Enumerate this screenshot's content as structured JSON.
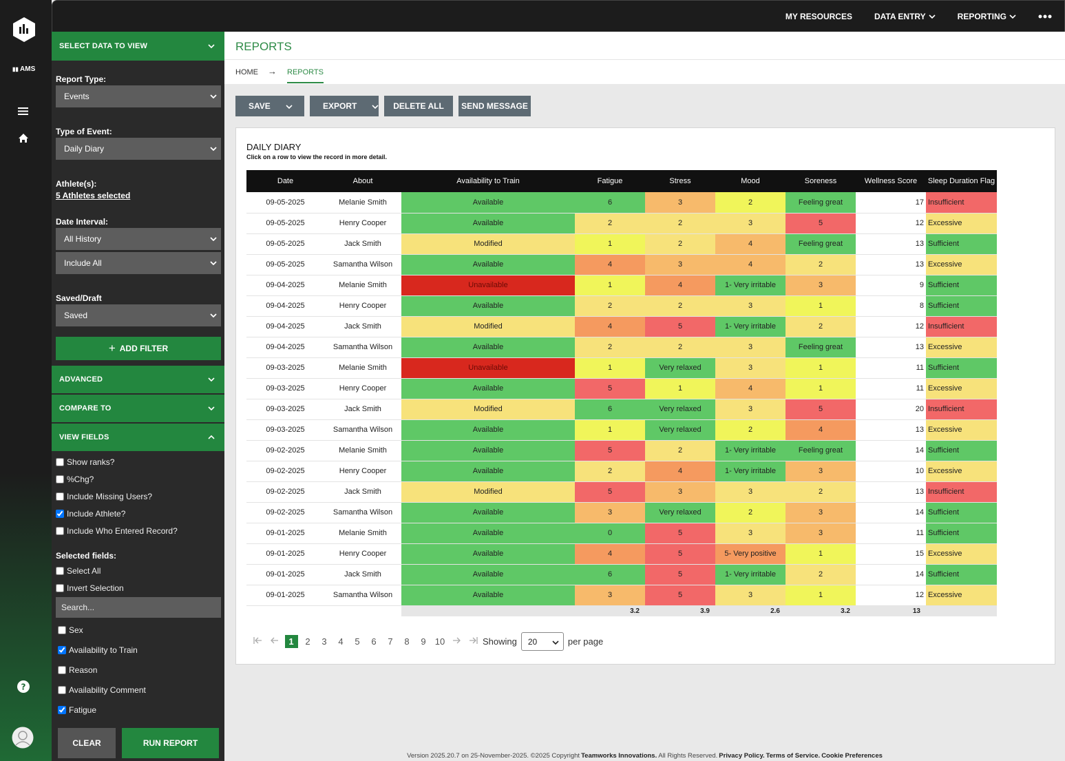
{
  "nav": {
    "brand": "AMS",
    "links": [
      {
        "text": "MY RESOURCES",
        "menu": false
      },
      {
        "text": "DATA ENTRY",
        "menu": true
      },
      {
        "text": "REPORTING",
        "menu": true
      }
    ]
  },
  "sidebar": {
    "header": "SELECT DATA TO VIEW",
    "report_type": {
      "label": "Report Type:",
      "value": "Events"
    },
    "event_type": {
      "label": "Type of Event:",
      "value": "Daily Diary"
    },
    "athletes": {
      "label": "Athlete(s):",
      "value": "5 Athletes selected"
    },
    "date_interval": {
      "label": "Date Interval:",
      "values": [
        "All History",
        "Include All"
      ]
    },
    "saved_draft": {
      "label": "Saved/Draft",
      "value": "Saved"
    },
    "add_filter": "ADD FILTER",
    "sections": [
      {
        "text": "ADVANCED",
        "open": false
      },
      {
        "text": "COMPARE TO",
        "open": false
      },
      {
        "text": "VIEW FIELDS",
        "open": true
      }
    ],
    "options": [
      {
        "label": "Show ranks?",
        "checked": false
      },
      {
        "label": "%Chg?",
        "checked": false
      },
      {
        "label": "Include Missing Users?",
        "checked": false
      },
      {
        "label": "Include Athlete?",
        "checked": true
      },
      {
        "label": "Include Who Entered Record?",
        "checked": false
      }
    ],
    "selected_fields": {
      "label": "Selected fields:",
      "options": [
        {
          "label": "Select All",
          "checked": false
        },
        {
          "label": "Invert Selection",
          "checked": false
        }
      ],
      "search": "Search...",
      "fields": [
        {
          "label": "Sex",
          "checked": false
        },
        {
          "label": "Availability to Train",
          "checked": true
        },
        {
          "label": "Reason",
          "checked": false
        },
        {
          "label": "Availability Comment",
          "checked": false
        },
        {
          "label": "Fatigue",
          "checked": true
        }
      ]
    },
    "buttons": [
      "CLEAR",
      "RUN REPORT"
    ]
  },
  "page": {
    "title": "REPORTS",
    "breadcrumb": [
      "HOME",
      "REPORTS"
    ],
    "actions": [
      {
        "text": "SAVE",
        "menu": true
      },
      {
        "text": "EXPORT",
        "menu": true
      },
      {
        "text": "DELETE ALL",
        "menu": false
      },
      {
        "text": "SEND MESSAGE",
        "menu": false
      }
    ]
  },
  "table": {
    "title": "DAILY DIARY",
    "subtitle": "Click on a row to view the record in more detail.",
    "columns": [
      "Date",
      "About",
      "Availability to Train",
      "Fatigue",
      "Stress",
      "Mood",
      "Soreness",
      "Wellness Score",
      "Sleep Duration Flag"
    ],
    "palette": {
      "green": "#5fc866",
      "yellow": "#f0f55a",
      "pale": "#f7e27b",
      "light-orange": "#f7ba6b",
      "orange": "#f59a5f",
      "red": "#f26868",
      "dark-red": "#d8281e"
    },
    "rows": [
      [
        "09-05-2025",
        "Melanie Smith",
        "Available",
        6,
        3,
        2,
        "Feeling great",
        17,
        "Insufficient"
      ],
      [
        "09-05-2025",
        "Henry Cooper",
        "Available",
        2,
        2,
        3,
        5,
        12,
        "Excessive"
      ],
      [
        "09-05-2025",
        "Jack Smith",
        "Modified",
        1,
        2,
        4,
        "Feeling great",
        13,
        "Sufficient"
      ],
      [
        "09-05-2025",
        "Samantha Wilson",
        "Available",
        4,
        3,
        4,
        2,
        13,
        "Excessive"
      ],
      [
        "09-04-2025",
        "Melanie Smith",
        "Unavailable",
        1,
        4,
        "1- Very irritable",
        3,
        9,
        "Sufficient"
      ],
      [
        "09-04-2025",
        "Henry Cooper",
        "Available",
        2,
        2,
        3,
        1,
        8,
        "Sufficient"
      ],
      [
        "09-04-2025",
        "Jack Smith",
        "Modified",
        4,
        5,
        "1- Very irritable",
        2,
        12,
        "Insufficient"
      ],
      [
        "09-04-2025",
        "Samantha Wilson",
        "Available",
        2,
        2,
        3,
        "Feeling great",
        13,
        "Excessive"
      ],
      [
        "09-03-2025",
        "Melanie Smith",
        "Unavailable",
        1,
        "Very relaxed",
        3,
        1,
        11,
        "Sufficient"
      ],
      [
        "09-03-2025",
        "Henry Cooper",
        "Available",
        5,
        1,
        4,
        1,
        11,
        "Excessive"
      ],
      [
        "09-03-2025",
        "Jack Smith",
        "Modified",
        6,
        "Very relaxed",
        3,
        5,
        20,
        "Insufficient"
      ],
      [
        "09-03-2025",
        "Samantha Wilson",
        "Available",
        1,
        "Very relaxed",
        2,
        4,
        13,
        "Excessive"
      ],
      [
        "09-02-2025",
        "Melanie Smith",
        "Available",
        5,
        2,
        "1- Very irritable",
        "Feeling great",
        14,
        "Sufficient"
      ],
      [
        "09-02-2025",
        "Henry Cooper",
        "Available",
        2,
        4,
        "1- Very irritable",
        3,
        10,
        "Excessive"
      ],
      [
        "09-02-2025",
        "Jack Smith",
        "Modified",
        5,
        3,
        3,
        2,
        13,
        "Insufficient"
      ],
      [
        "09-02-2025",
        "Samantha Wilson",
        "Available",
        3,
        "Very relaxed",
        2,
        3,
        14,
        "Sufficient"
      ],
      [
        "09-01-2025",
        "Melanie Smith",
        "Available",
        0,
        5,
        3,
        3,
        11,
        "Sufficient"
      ],
      [
        "09-01-2025",
        "Henry Cooper",
        "Available",
        4,
        5,
        "5- Very positive",
        1,
        15,
        "Excessive"
      ],
      [
        "09-01-2025",
        "Jack Smith",
        "Available",
        6,
        5,
        "1- Very irritable",
        2,
        14,
        "Sufficient"
      ],
      [
        "09-01-2025",
        "Samantha Wilson",
        "Available",
        3,
        5,
        3,
        1,
        12,
        "Excessive"
      ]
    ],
    "cell_colors": [
      [
        null,
        null,
        "green",
        "green",
        "light-orange",
        "yellow",
        "green",
        null,
        "red"
      ],
      [
        null,
        null,
        "green",
        "pale",
        "pale",
        "pale",
        "red",
        null,
        "pale"
      ],
      [
        null,
        null,
        "pale",
        "yellow",
        "pale",
        "light-orange",
        "green",
        null,
        "green"
      ],
      [
        null,
        null,
        "green",
        "orange",
        "light-orange",
        "light-orange",
        "pale",
        null,
        "pale"
      ],
      [
        null,
        null,
        "dark-red",
        "yellow",
        "orange",
        "green",
        "light-orange",
        null,
        "green"
      ],
      [
        null,
        null,
        "green",
        "pale",
        "pale",
        "pale",
        "yellow",
        null,
        "green"
      ],
      [
        null,
        null,
        "pale",
        "orange",
        "red",
        "green",
        "pale",
        null,
        "red"
      ],
      [
        null,
        null,
        "green",
        "pale",
        "pale",
        "pale",
        "green",
        null,
        "pale"
      ],
      [
        null,
        null,
        "dark-red",
        "yellow",
        "green",
        "pale",
        "yellow",
        null,
        "green"
      ],
      [
        null,
        null,
        "green",
        "red",
        "yellow",
        "light-orange",
        "yellow",
        null,
        "pale"
      ],
      [
        null,
        null,
        "pale",
        "green",
        "green",
        "pale",
        "red",
        null,
        "red"
      ],
      [
        null,
        null,
        "green",
        "yellow",
        "green",
        "yellow",
        "orange",
        null,
        "pale"
      ],
      [
        null,
        null,
        "green",
        "red",
        "pale",
        "green",
        "green",
        null,
        "green"
      ],
      [
        null,
        null,
        "green",
        "pale",
        "orange",
        "green",
        "light-orange",
        null,
        "pale"
      ],
      [
        null,
        null,
        "pale",
        "red",
        "light-orange",
        "pale",
        "pale",
        null,
        "red"
      ],
      [
        null,
        null,
        "green",
        "light-orange",
        "green",
        "yellow",
        "light-orange",
        null,
        "green"
      ],
      [
        null,
        null,
        "green",
        "green",
        "red",
        "pale",
        "light-orange",
        null,
        "green"
      ],
      [
        null,
        null,
        "green",
        "orange",
        "red",
        "orange",
        "yellow",
        null,
        "pale"
      ],
      [
        null,
        null,
        "green",
        "green",
        "red",
        "green",
        "pale",
        null,
        "green"
      ],
      [
        null,
        null,
        "green",
        "light-orange",
        "red",
        "pale",
        "yellow",
        null,
        "pale"
      ]
    ],
    "averages": [
      null,
      null,
      null,
      3.2,
      3.9,
      2.6,
      3.2,
      13,
      null
    ]
  },
  "pagination": {
    "pages": [
      1,
      2,
      3,
      4,
      5,
      6,
      7,
      8,
      9,
      10
    ],
    "current": 1,
    "showing": "Showing",
    "page_size": 20,
    "per_page": "per page"
  },
  "footer": {
    "segments": [
      {
        "text": "Version 2025.20.7 on 25-November-2025. ©2025 Copyright",
        "bold": false
      },
      {
        "text": "Teamworks Innovations.",
        "bold": true
      },
      {
        "text": "All Rights Reserved.",
        "bold": false
      },
      {
        "text": "Privacy Policy.",
        "bold": true
      },
      {
        "text": "Terms of Service.",
        "bold": true
      },
      {
        "text": "Cookie Preferences",
        "bold": true
      }
    ]
  }
}
